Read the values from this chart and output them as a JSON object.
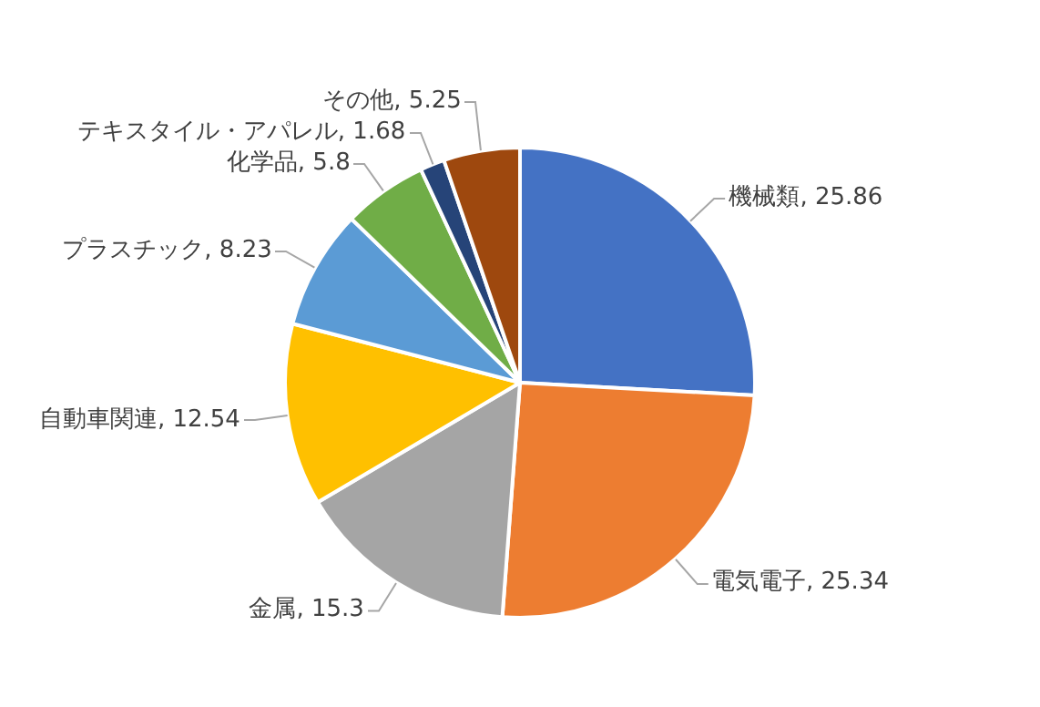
{
  "chart_data": {
    "type": "pie",
    "categories": [
      "機械類",
      "電気電子",
      "金属",
      "自動車関連",
      "プラスチック",
      "化学品",
      "テキスタイル・アパレル",
      "その他"
    ],
    "values": [
      25.86,
      25.34,
      15.3,
      12.54,
      8.23,
      5.8,
      1.68,
      5.25
    ],
    "value_labels": [
      ", 25.86",
      ", 25.34",
      ", 15.3",
      ", 12.54",
      ", 8.23",
      ", 5.8",
      ", 1.68",
      ", 5.25"
    ],
    "colors": [
      "#4472c4",
      "#ed7d31",
      "#a5a5a5",
      "#ffc000",
      "#5b9bd5",
      "#70ad47",
      "#264478",
      "#9e480e"
    ],
    "legend": false
  }
}
